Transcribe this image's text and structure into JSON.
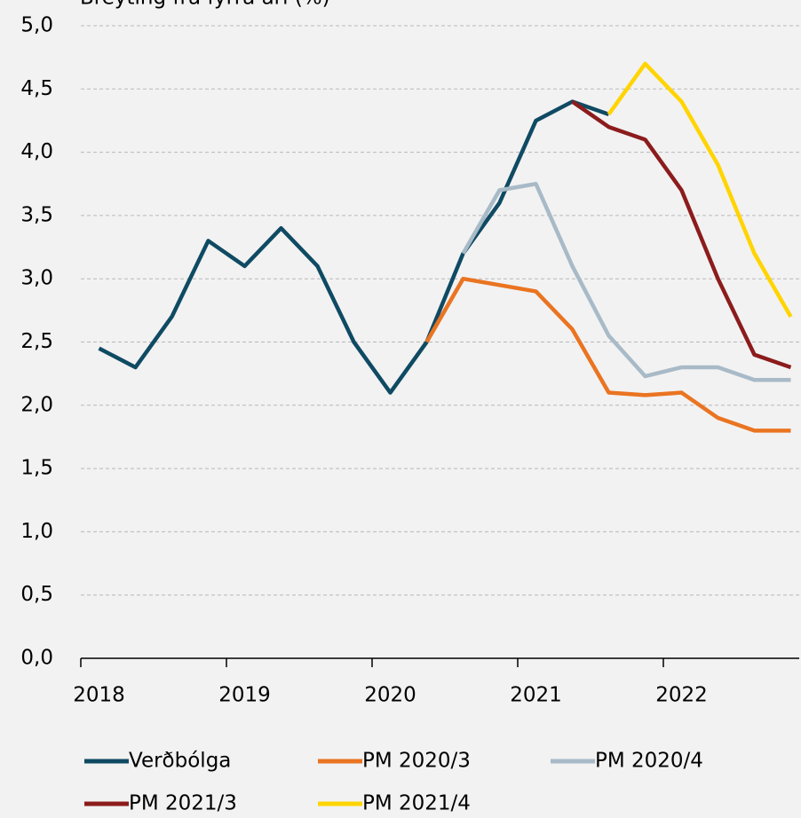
{
  "chart_data": {
    "type": "line",
    "title": "Breyting frá fyrra ári (%)",
    "categories": [
      "2018",
      null,
      null,
      null,
      "2019",
      null,
      null,
      null,
      "2020",
      null,
      null,
      null,
      "2021",
      null,
      null,
      null,
      "2022",
      null,
      null,
      null
    ],
    "series": [
      {
        "name": "Verðbólga",
        "color": "#0f4a63",
        "values": [
          2.45,
          2.3,
          2.7,
          3.3,
          3.1,
          3.4,
          3.1,
          2.5,
          2.1,
          2.5,
          3.2,
          3.6,
          4.25,
          4.4,
          4.3,
          null,
          null,
          null,
          null,
          null
        ]
      },
      {
        "name": "PM 2020/3",
        "color": "#ea7421",
        "values": [
          null,
          null,
          null,
          null,
          null,
          null,
          null,
          null,
          null,
          2.5,
          3.0,
          2.95,
          2.9,
          2.6,
          2.1,
          2.08,
          2.1,
          1.9,
          1.8,
          1.8
        ]
      },
      {
        "name": "PM 2020/4",
        "color": "#a8bac7",
        "values": [
          null,
          null,
          null,
          null,
          null,
          null,
          null,
          null,
          null,
          null,
          3.2,
          3.7,
          3.75,
          3.1,
          2.55,
          2.23,
          2.3,
          2.3,
          2.2,
          2.2
        ]
      },
      {
        "name": "PM 2021/3",
        "color": "#8c1c1c",
        "values": [
          null,
          null,
          null,
          null,
          null,
          null,
          null,
          null,
          null,
          null,
          null,
          null,
          null,
          4.4,
          4.2,
          4.1,
          3.7,
          3.0,
          2.4,
          2.3
        ]
      },
      {
        "name": "PM 2021/4",
        "color": "#ffd400",
        "values": [
          null,
          null,
          null,
          null,
          null,
          null,
          null,
          null,
          null,
          null,
          null,
          null,
          null,
          null,
          4.3,
          4.7,
          4.4,
          3.9,
          3.2,
          2.7
        ]
      }
    ],
    "ylim": [
      0,
      5
    ],
    "yticks": [
      {
        "value": 0,
        "label": "0,0"
      },
      {
        "value": 0.5,
        "label": "0,5"
      },
      {
        "value": 1,
        "label": "1,0"
      },
      {
        "value": 1.5,
        "label": "1,5"
      },
      {
        "value": 2,
        "label": "2,0"
      },
      {
        "value": 2.5,
        "label": "2,5"
      },
      {
        "value": 3,
        "label": "3,0"
      },
      {
        "value": 3.5,
        "label": "3,5"
      },
      {
        "value": 4,
        "label": "4,0"
      },
      {
        "value": 4.5,
        "label": "4,5"
      },
      {
        "value": 5,
        "label": "5,0"
      }
    ],
    "grid": true
  }
}
